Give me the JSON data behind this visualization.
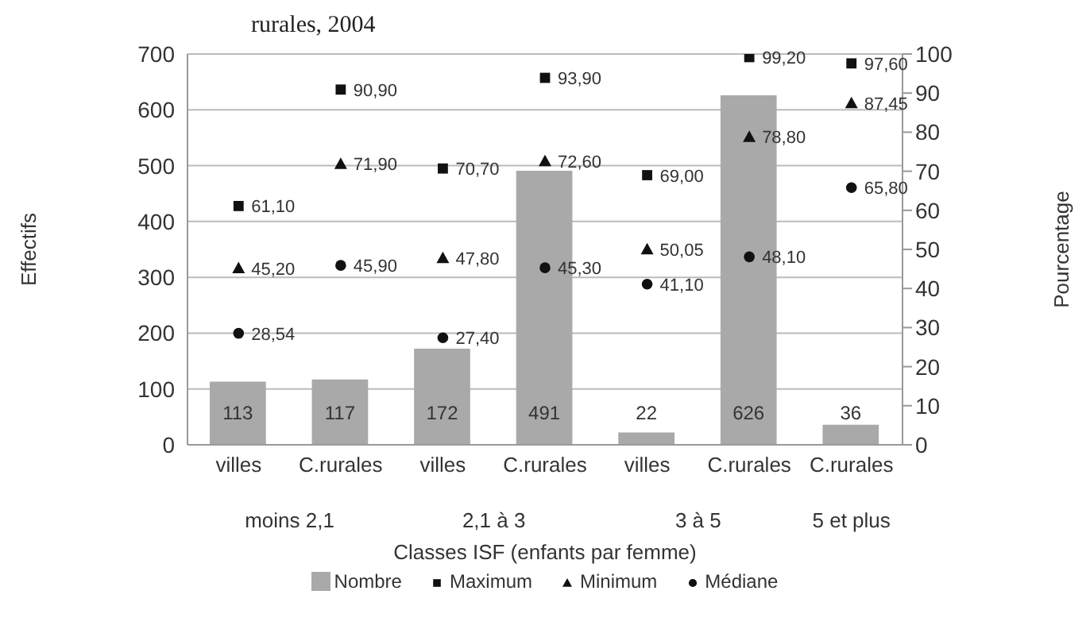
{
  "chart_data": {
    "type": "bar",
    "title": "rurales, 2004",
    "xlabel": "Classes ISF (enfants par femme)",
    "ylabel": "Effectifs",
    "y2label": "Pourcentage",
    "categories": [
      "villes",
      "C.rurales",
      "villes",
      "C.rurales",
      "villes",
      "C.rurales",
      "C.rurales"
    ],
    "annotations": [
      "moins 2,1",
      "2,1 à 3",
      "3 à 5",
      "5 et plus"
    ],
    "series": [
      {
        "name": "Nombre",
        "color": "#a9a9a9",
        "values": [
          113,
          117,
          172,
          491,
          22,
          626,
          36
        ],
        "value_labels": [
          "113",
          "117",
          "172",
          "491",
          "22",
          "626",
          "36"
        ]
      },
      {
        "name": "Maximum",
        "type": "scatter",
        "axis": "y2",
        "marker": "square",
        "color": "#111111",
        "values": [
          61.1,
          90.9,
          70.7,
          93.9,
          69.0,
          99.2,
          97.6
        ],
        "value_labels": [
          "61,10",
          "90,90",
          "70,70",
          "93,90",
          "69,00",
          "99,20",
          "97,60"
        ]
      },
      {
        "name": "Minimum",
        "type": "scatter",
        "axis": "y2",
        "marker": "triangle",
        "color": "#111111",
        "values": [
          45.2,
          71.9,
          47.8,
          72.6,
          50.05,
          78.8,
          87.45
        ],
        "value_labels": [
          "45,20",
          "71,90",
          "47,80",
          "72,60",
          "50,05",
          "78,80",
          "87,45"
        ]
      },
      {
        "name": "Médiane",
        "type": "scatter",
        "axis": "y2",
        "marker": "circle",
        "color": "#111111",
        "values": [
          28.54,
          45.9,
          27.4,
          45.3,
          41.1,
          48.1,
          65.8
        ],
        "value_labels": [
          "28,54",
          "45,90",
          "27,40",
          "45,30",
          "41,10",
          "48,10",
          "65,80"
        ]
      }
    ],
    "ylim": [
      0,
      700
    ],
    "yticks": [
      0,
      100,
      200,
      300,
      400,
      500,
      600,
      700
    ],
    "y2lim": [
      0,
      100
    ],
    "y2ticks": [
      0,
      10,
      20,
      30,
      40,
      50,
      60,
      70,
      80,
      90,
      100
    ],
    "grid": "y",
    "legend": "bottom"
  }
}
